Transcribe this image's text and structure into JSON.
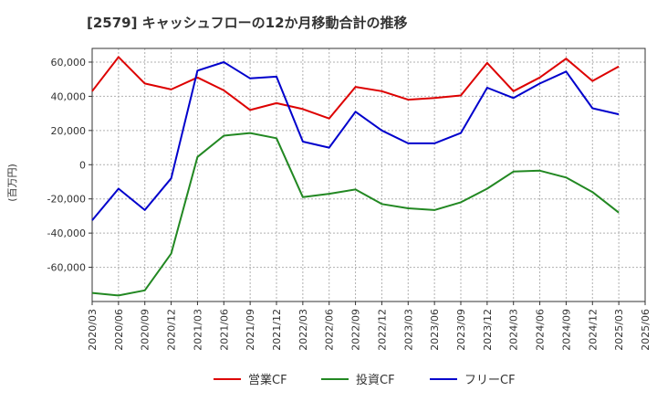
{
  "chart_data": {
    "type": "line",
    "title": "[2579]  キャッシュフローの12か月移動合計の推移",
    "ylabel": "(百万円)",
    "xlabel": "",
    "ylim": [
      -80000,
      68000
    ],
    "yticks": [
      60000,
      40000,
      20000,
      0,
      -20000,
      -40000,
      -60000
    ],
    "ytick_labels": [
      "60,000",
      "40,000",
      "20,000",
      "0",
      "-20,000",
      "-40,000",
      "-60,000"
    ],
    "x_tick_labels": [
      "2020/03",
      "2020/06",
      "2020/09",
      "2020/12",
      "2021/03",
      "2021/06",
      "2021/09",
      "2021/12",
      "2022/03",
      "2022/06",
      "2022/09",
      "2022/12",
      "2023/03",
      "2023/06",
      "2023/09",
      "2023/12",
      "2024/03",
      "2024/06",
      "2024/09",
      "2024/12",
      "2025/03",
      "2025/06"
    ],
    "grid": true,
    "legend_position": "bottom",
    "series": [
      {
        "name": "営業CF",
        "color": "#dd0000",
        "values": [
          43000,
          63000,
          47500,
          44000,
          51000,
          43500,
          32000,
          36000,
          32500,
          27000,
          45500,
          43000,
          38000,
          39000,
          40500,
          59500,
          43000,
          51000,
          62000,
          49000,
          57500
        ]
      },
      {
        "name": "投資CF",
        "color": "#228822",
        "values": [
          -75000,
          -76500,
          -73500,
          -52000,
          4500,
          17000,
          18500,
          15500,
          -19000,
          -17000,
          -14500,
          -23000,
          -25500,
          -26500,
          -22000,
          -14000,
          -4000,
          -3500,
          -7500,
          -16000,
          -28000
        ]
      },
      {
        "name": "フリーCF",
        "color": "#0000cc",
        "values": [
          -32500,
          -14000,
          -26500,
          -8000,
          55000,
          60000,
          50500,
          51500,
          13500,
          10000,
          31000,
          20000,
          12500,
          12500,
          18500,
          45000,
          39000,
          47500,
          54500,
          33000,
          29500
        ]
      }
    ]
  }
}
